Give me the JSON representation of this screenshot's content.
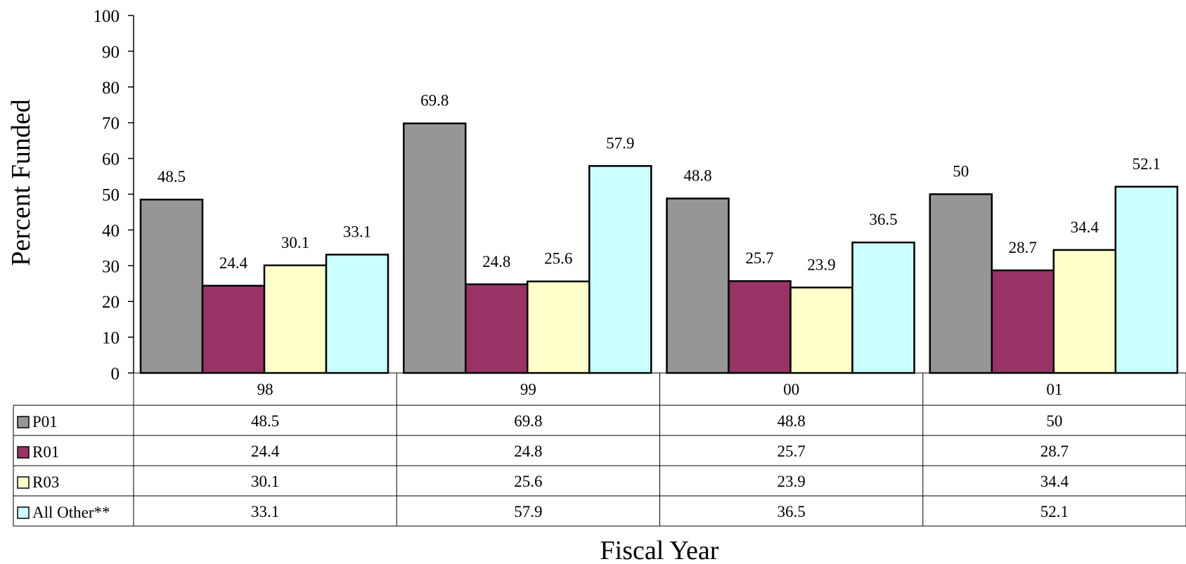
{
  "chart_data": {
    "type": "bar",
    "categories": [
      "98",
      "99",
      "00",
      "01"
    ],
    "series": [
      {
        "name": "P01",
        "values": [
          48.5,
          69.8,
          48.8,
          50
        ],
        "color": "#969696"
      },
      {
        "name": "R01",
        "values": [
          24.4,
          24.8,
          25.7,
          28.7
        ],
        "color": "#993366"
      },
      {
        "name": "R03",
        "values": [
          30.1,
          25.6,
          23.9,
          34.4
        ],
        "color": "#FFFFCC"
      },
      {
        "name": "All Other**",
        "values": [
          33.1,
          57.9,
          36.5,
          52.1
        ],
        "color": "#CCFFFF"
      }
    ],
    "value_labels": [
      [
        "48.5",
        "69.8",
        "48.8",
        "50"
      ],
      [
        "24.4",
        "24.8",
        "25.7",
        "28.7"
      ],
      [
        "30.1",
        "25.6",
        "23.9",
        "34.4"
      ],
      [
        "33.1",
        "57.9",
        "36.5",
        "52.1"
      ]
    ],
    "xlabel": "Fiscal Year",
    "ylabel": "Percent Funded",
    "ylim": [
      0,
      100
    ],
    "yticks": [
      0,
      10,
      20,
      30,
      40,
      50,
      60,
      70,
      80,
      90,
      100
    ],
    "ytick_labels": [
      "0",
      "10",
      "20",
      "30",
      "40",
      "50",
      "60",
      "70",
      "80",
      "90",
      "100"
    ],
    "grid": false,
    "legend": "data table below the chart"
  }
}
